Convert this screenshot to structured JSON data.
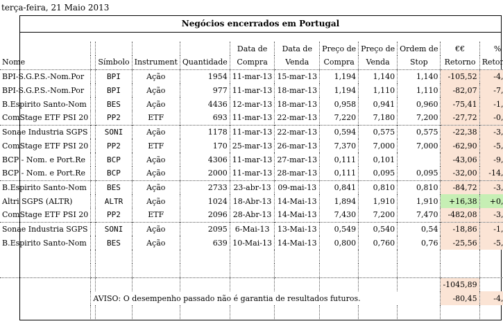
{
  "date_label": "terça-feira, 21 Maio 2013",
  "title": "Negócios encerrados em Portugal",
  "headers": {
    "top": [
      "",
      "",
      "",
      "",
      "Data de",
      "Data de",
      "Preço de",
      "Preço de",
      "Ordem de",
      "€€",
      "%"
    ],
    "bottom": [
      "Nome",
      "",
      "Símbolo",
      "Instrument",
      "Quantidade",
      "Compra",
      "Venda",
      "Compra",
      "Venda",
      "Stop",
      "Retorno",
      "Retorno"
    ]
  },
  "rows": [
    {
      "nome": "BPI-S.G.P.S.-Nom.Por",
      "simbolo": "BPI",
      "instrumento": "Ação",
      "quantidade": "1954",
      "compra": "11-mar-13",
      "venda": "15-mar-13",
      "preco_compra": "1,194",
      "preco_venda": "1,140",
      "stop": "1,140",
      "retorno_eur": "-105,52",
      "retorno_pct": "-4,52",
      "tone": "neg"
    },
    {
      "nome": "BPI-S.G.P.S.-Nom.Por",
      "simbolo": "BPI",
      "instrumento": "Ação",
      "quantidade": "977",
      "compra": "11-mar-13",
      "venda": "18-mar-13",
      "preco_compra": "1,194",
      "preco_venda": "1,110",
      "stop": "1,110",
      "retorno_eur": "-82,07",
      "retorno_pct": "-7,04",
      "tone": "neg"
    },
    {
      "nome": "B.Espirito Santo-Nom",
      "simbolo": "BES",
      "instrumento": "Ação",
      "quantidade": "4436",
      "compra": "12-mar-13",
      "venda": "18-mar-13",
      "preco_compra": "0,958",
      "preco_venda": "0,941",
      "stop": "0,960",
      "retorno_eur": "-75,41",
      "retorno_pct": "-1,77",
      "tone": "neg"
    },
    {
      "nome": "ComStage ETF PSI 20",
      "simbolo": "PP2",
      "instrumento": "ETF",
      "quantidade": "693",
      "compra": "11-mar-13",
      "venda": "22-mar-13",
      "preco_compra": "7,220",
      "preco_venda": "7,180",
      "stop": "7,200",
      "retorno_eur": "-27,72",
      "retorno_pct": "-0,55",
      "tone": "neg"
    },
    {
      "nome": "Sonae Industria SGPS",
      "simbolo": "SONI",
      "instrumento": "Ação",
      "quantidade": "1178",
      "compra": "11-mar-13",
      "venda": "22-mar-13",
      "preco_compra": "0,594",
      "preco_venda": "0,575",
      "stop": "0,575",
      "retorno_eur": "-22,38",
      "retorno_pct": "-3,20",
      "tone": "neg"
    },
    {
      "nome": "ComStage ETF PSI 20",
      "simbolo": "PP2",
      "instrumento": "ETF",
      "quantidade": "170",
      "compra": "25-mar-13",
      "venda": "26-mar-13",
      "preco_compra": "7,370",
      "preco_venda": "7,000",
      "stop": "7,000",
      "retorno_eur": "-62,90",
      "retorno_pct": "-5,02",
      "tone": "neg"
    },
    {
      "nome": "BCP - Nom. e Port.Re",
      "simbolo": "BCP",
      "instrumento": "Ação",
      "quantidade": "4306",
      "compra": "11-mar-13",
      "venda": "27-mar-13",
      "preco_compra": "0,111",
      "preco_venda": "0,101",
      "stop": "",
      "retorno_eur": "-43,06",
      "retorno_pct": "-9,01",
      "tone": "neg"
    },
    {
      "nome": "BCP - Nom. e Port.Re",
      "simbolo": "BCP",
      "instrumento": "Ação",
      "quantidade": "2000",
      "compra": "11-mar-13",
      "venda": "28-mar-13",
      "preco_compra": "0,111",
      "preco_venda": "0,095",
      "stop": "0,095",
      "retorno_eur": "-32,00",
      "retorno_pct": "-14,41",
      "tone": "neg"
    },
    {
      "nome": "B.Espirito Santo-Nom",
      "simbolo": "BES",
      "instrumento": "Ação",
      "quantidade": "2733",
      "compra": "23-abr-13",
      "venda": "09-mai-13",
      "preco_compra": "0,841",
      "preco_venda": "0,810",
      "stop": "0,810",
      "retorno_eur": "-84,72",
      "retorno_pct": "-3,69",
      "tone": "neg"
    },
    {
      "nome": "Altri SGPS (ALTR)",
      "simbolo": "ALTR",
      "instrumento": "Ação",
      "quantidade": "1024",
      "compra": "18-Abr-13",
      "venda": "14-Mai-13",
      "preco_compra": "1,894",
      "preco_venda": "1,910",
      "stop": "1,910",
      "retorno_eur": "+16,38",
      "retorno_pct": "+0,84",
      "tone": "pos"
    },
    {
      "nome": "ComStage ETF PSI 20",
      "simbolo": "PP2",
      "instrumento": "ETF",
      "quantidade": "2096",
      "compra": "28-Abr-13",
      "venda": "14-Mai-13",
      "preco_compra": "7,430",
      "preco_venda": "7,200",
      "stop": "7,470",
      "retorno_eur": "-482,08",
      "retorno_pct": "-3,10",
      "tone": "neg"
    },
    {
      "nome": "Sonae Industria SGPS",
      "simbolo": "SONI",
      "instrumento": "Ação",
      "quantidade": "2095",
      "compra": "6-Mai-13",
      "venda": "13-Mai-13",
      "preco_compra": "0,549",
      "preco_venda": "0,540",
      "stop": "0,54",
      "retorno_eur": "-18,86",
      "retorno_pct": "-1,64",
      "tone": "neg"
    },
    {
      "nome": "B.Espirito Santo-Nom",
      "simbolo": "BES",
      "instrumento": "Ação",
      "quantidade": "639",
      "compra": "10-Mai-13",
      "venda": "14-Mai-13",
      "preco_compra": "0,800",
      "preco_venda": "0,760",
      "stop": "0,76",
      "retorno_eur": "-25,56",
      "retorno_pct": "-5,00",
      "tone": "neg"
    }
  ],
  "total_eur": "-1045,89",
  "disclaimer": "AVISO: O desempenho passado não é garantia de resultados futuros.",
  "avg_eur": "-80,45",
  "avg_pct": "-4,47",
  "colors": {
    "negative_fill": "#fbe4d5",
    "positive_fill": "#c6efb4"
  }
}
